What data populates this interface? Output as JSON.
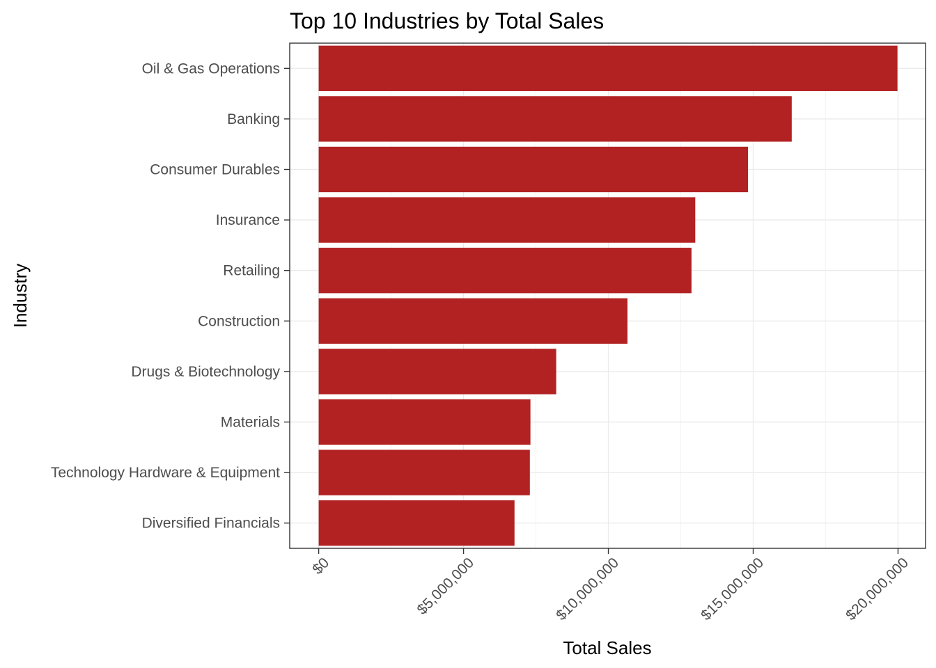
{
  "chart_data": {
    "type": "bar",
    "orientation": "horizontal",
    "title": "Top 10 Industries by Total Sales",
    "xlabel": "Total Sales",
    "ylabel": "Industry",
    "categories": [
      "Oil & Gas Operations",
      "Banking",
      "Consumer Durables",
      "Insurance",
      "Retailing",
      "Construction",
      "Drugs & Biotechnology",
      "Materials",
      "Technology Hardware & Equipment",
      "Diversified Financials"
    ],
    "values": [
      19980000,
      16330000,
      14820000,
      13000000,
      12870000,
      10660000,
      8200000,
      7310000,
      7290000,
      6760000
    ],
    "xlim": [
      -1000000,
      20950000
    ],
    "x_ticks": [
      0,
      5000000,
      10000000,
      15000000,
      20000000
    ],
    "x_tick_labels": [
      "$0",
      "$5,000,000",
      "$10,000,000",
      "$15,000,000",
      "$20,000,000"
    ],
    "bar_color": "#b22222",
    "grid": true,
    "legend": "none"
  }
}
